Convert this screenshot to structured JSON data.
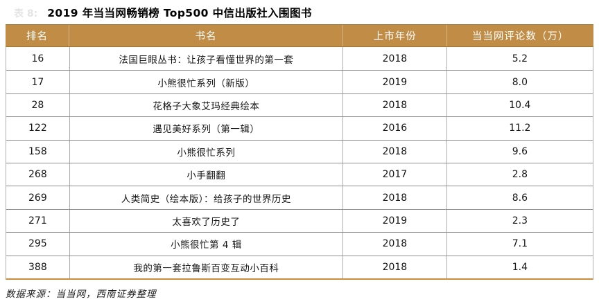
{
  "caption": {
    "faint_label": "表 8:",
    "title": "2019 年当当网畅销榜 Top500 中信出版社入围图书"
  },
  "table": {
    "headers": [
      "排名",
      "书名",
      "上市年份",
      "当当网评论数（万）"
    ],
    "rows": [
      [
        "16",
        "法国巨眼丛书：让孩子看懂世界的第一套",
        "2018",
        "5.2"
      ],
      [
        "17",
        "小熊很忙系列（新版）",
        "2019",
        "8.0"
      ],
      [
        "28",
        "花格子大象艾玛经典绘本",
        "2018",
        "10.4"
      ],
      [
        "122",
        "遇见美好系列（第一辑）",
        "2016",
        "11.2"
      ],
      [
        "158",
        "小熊很忙系列",
        "2018",
        "9.6"
      ],
      [
        "268",
        "小手翻翻",
        "2017",
        "2.8"
      ],
      [
        "269",
        "人类简史（绘本版）：给孩子的世界历史",
        "2018",
        "8.6"
      ],
      [
        "271",
        "太喜欢了历史了",
        "2019",
        "2.3"
      ],
      [
        "295",
        "小熊很忙第 4 辑",
        "2018",
        "7.1"
      ],
      [
        "388",
        "我的第一套拉鲁斯百变互动小百科",
        "2018",
        "1.4"
      ]
    ]
  },
  "footer": {
    "source": "数据来源：当当网，西南证券整理"
  },
  "colors": {
    "header_bg": "#C18C46",
    "header_text": "#FFFFFF",
    "header_border": "#9A7434",
    "row_line": "#8E8E8E",
    "column_line": "#ADADAD",
    "bottom_accent_border": "#CE8D3C"
  }
}
